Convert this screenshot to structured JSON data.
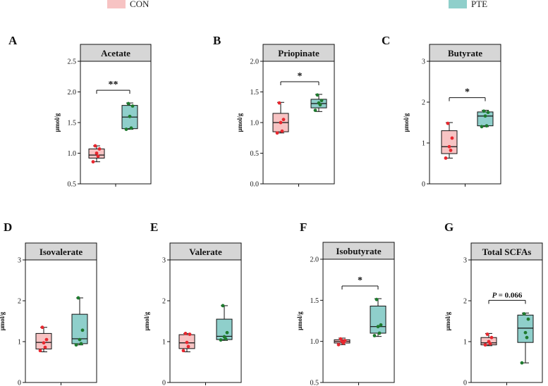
{
  "legend": [
    {
      "label": "CON",
      "color": "#F7C3C3"
    },
    {
      "label": "PTE",
      "color": "#8FCFCB"
    }
  ],
  "colors": {
    "con_box": "#F7C3C3",
    "pte_box": "#8FCFCB",
    "con_dot": "#E8272E",
    "pte_dot": "#1E7A2E",
    "title_bar": "#D6D6D6",
    "line": "#111111"
  },
  "chart_data": [
    {
      "letter": "A",
      "type": "box",
      "title": "Acetate",
      "ylabel": "μmol/g",
      "ylim": [
        0.5,
        2.5
      ],
      "yticks": [
        "0.5",
        "1.0",
        "1.5",
        "2.0",
        "2.5"
      ],
      "groups": [
        {
          "name": "CON",
          "min": 0.86,
          "q1": 0.92,
          "median": 0.97,
          "q3": 1.07,
          "max": 1.12,
          "points": [
            0.86,
            0.95,
            1.0,
            1.07,
            1.12
          ]
        },
        {
          "name": "PTE",
          "min": 1.39,
          "q1": 1.4,
          "median": 1.59,
          "q3": 1.78,
          "max": 1.82,
          "points": [
            1.39,
            1.41,
            1.6,
            1.77,
            1.81
          ]
        }
      ],
      "significance": "**"
    },
    {
      "letter": "B",
      "type": "box",
      "title": "Priopinate",
      "ylabel": "μmol/g",
      "ylim": [
        0.0,
        2.0
      ],
      "yticks": [
        "0.0",
        "0.5",
        "1.0",
        "1.5",
        "2.0"
      ],
      "groups": [
        {
          "name": "CON",
          "min": 0.83,
          "q1": 0.85,
          "median": 1.0,
          "q3": 1.15,
          "max": 1.33,
          "points": [
            0.83,
            0.86,
            1.0,
            1.05,
            1.32
          ]
        },
        {
          "name": "PTE",
          "min": 1.18,
          "q1": 1.24,
          "median": 1.31,
          "q3": 1.38,
          "max": 1.46,
          "points": [
            1.2,
            1.29,
            1.32,
            1.36,
            1.45
          ]
        }
      ],
      "significance": "*"
    },
    {
      "letter": "C",
      "type": "box",
      "title": "Butyrate",
      "ylabel": "μmol/g",
      "ylim": [
        0,
        3
      ],
      "yticks": [
        "0",
        "1",
        "2",
        "3"
      ],
      "groups": [
        {
          "name": "CON",
          "min": 0.63,
          "q1": 0.74,
          "median": 0.91,
          "q3": 1.3,
          "max": 1.5,
          "points": [
            0.63,
            0.82,
            0.91,
            1.12,
            1.48
          ]
        },
        {
          "name": "PTE",
          "min": 1.4,
          "q1": 1.42,
          "median": 1.66,
          "q3": 1.76,
          "max": 1.8,
          "points": [
            1.4,
            1.42,
            1.66,
            1.75,
            1.78
          ]
        }
      ],
      "significance": "*"
    },
    {
      "letter": "D",
      "type": "box",
      "title": "Isovalerate",
      "ylabel": "μmol/g",
      "ylim": [
        0,
        3
      ],
      "yticks": [
        "0",
        "1",
        "2",
        "3"
      ],
      "groups": [
        {
          "name": "CON",
          "min": 0.75,
          "q1": 0.82,
          "median": 0.98,
          "q3": 1.2,
          "max": 1.35,
          "points": [
            0.78,
            0.86,
            0.97,
            1.05,
            1.35
          ]
        },
        {
          "name": "PTE",
          "min": 0.92,
          "q1": 0.95,
          "median": 1.07,
          "q3": 1.67,
          "max": 2.07,
          "points": [
            0.92,
            0.95,
            1.05,
            1.28,
            2.07
          ]
        }
      ],
      "significance": ""
    },
    {
      "letter": "E",
      "type": "box",
      "title": "Valerate",
      "ylabel": "μmol/g",
      "ylim": [
        0,
        3
      ],
      "yticks": [
        "0",
        "1",
        "2",
        "3"
      ],
      "groups": [
        {
          "name": "CON",
          "min": 0.75,
          "q1": 0.83,
          "median": 0.97,
          "q3": 1.17,
          "max": 1.2,
          "points": [
            0.78,
            0.88,
            0.98,
            1.18,
            1.2
          ]
        },
        {
          "name": "PTE",
          "min": 1.03,
          "q1": 1.05,
          "median": 1.13,
          "q3": 1.55,
          "max": 1.88,
          "points": [
            1.04,
            1.07,
            1.12,
            1.22,
            1.88
          ]
        }
      ],
      "significance": ""
    },
    {
      "letter": "F",
      "type": "box",
      "title": "Isobutyrate",
      "ylabel": "μmol/g",
      "ylim": [
        0.5,
        2.0
      ],
      "yticks": [
        "0.5",
        "1.0",
        "1.5",
        "2.0"
      ],
      "groups": [
        {
          "name": "CON",
          "min": 0.96,
          "q1": 0.98,
          "median": 1.0,
          "q3": 1.02,
          "max": 1.04,
          "points": [
            0.96,
            0.98,
            1.0,
            1.01,
            1.03
          ]
        },
        {
          "name": "PTE",
          "min": 1.06,
          "q1": 1.1,
          "median": 1.18,
          "q3": 1.43,
          "max": 1.52,
          "points": [
            1.07,
            1.1,
            1.18,
            1.2,
            1.51
          ]
        }
      ],
      "significance": "*"
    },
    {
      "letter": "G",
      "type": "box",
      "title": "Total SCFAs",
      "ylabel": "μmol/g",
      "ylim": [
        0,
        3
      ],
      "yticks": [
        "0",
        "1",
        "2",
        "3"
      ],
      "groups": [
        {
          "name": "CON",
          "min": 0.9,
          "q1": 0.92,
          "median": 0.97,
          "q3": 1.1,
          "max": 1.2,
          "points": [
            0.92,
            0.95,
            1.0,
            1.1,
            1.18
          ]
        },
        {
          "name": "PTE",
          "min": 0.48,
          "q1": 0.98,
          "median": 1.33,
          "q3": 1.65,
          "max": 1.7,
          "points": [
            0.48,
            1.1,
            1.22,
            1.55,
            1.68
          ]
        }
      ],
      "significance": "= 0.066",
      "significance_prefix": "P"
    }
  ]
}
